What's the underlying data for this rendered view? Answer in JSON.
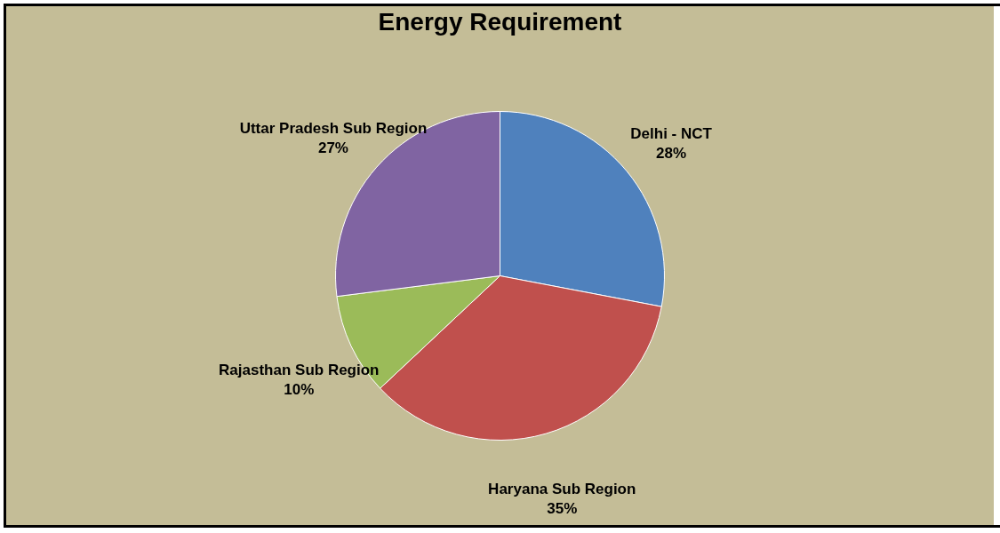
{
  "chart_data": {
    "type": "pie",
    "title": "Energy Requirement",
    "categories": [
      "Delhi - NCT",
      "Haryana Sub Region",
      "Rajasthan Sub Region",
      "Uttar Pradesh Sub Region"
    ],
    "values": [
      28,
      35,
      10,
      27
    ],
    "value_labels": [
      "28%",
      "35%",
      "10%",
      "27%"
    ],
    "colors": [
      "#4f81bd",
      "#c0504d",
      "#9bbb59",
      "#8064a2"
    ],
    "legend": false
  }
}
